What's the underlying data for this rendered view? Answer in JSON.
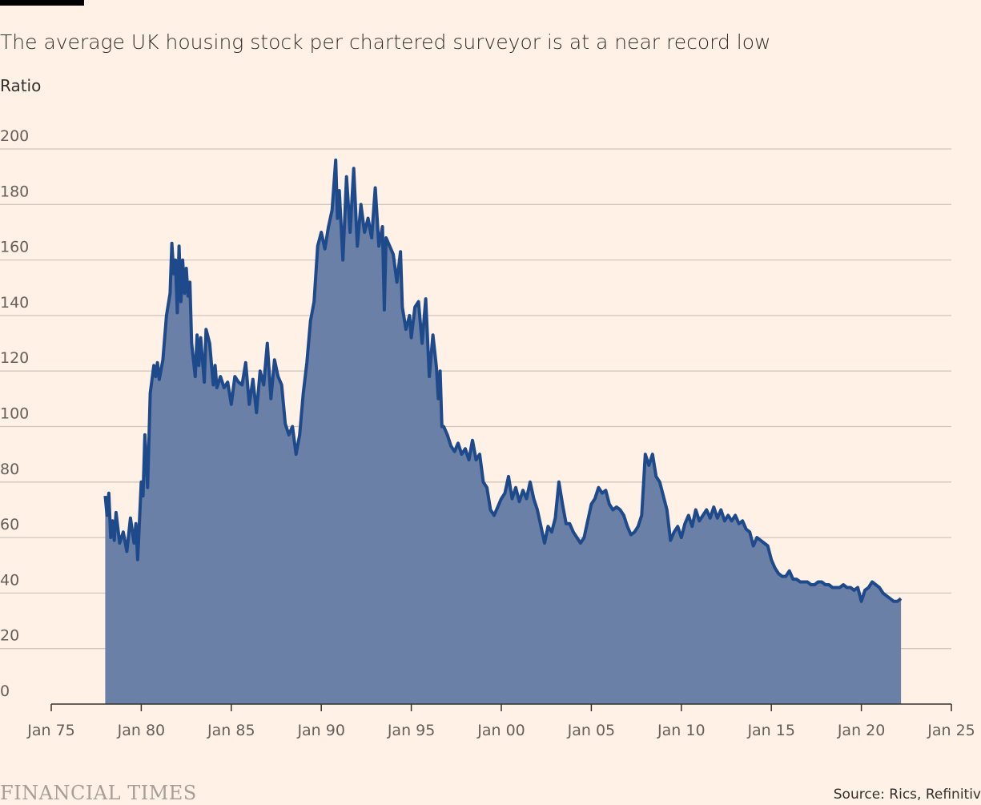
{
  "header": {
    "title": "The average UK housing stock per chartered surveyor is at a near record low",
    "subtitle": "Ratio"
  },
  "footer": {
    "logo": "FINANCIAL TIMES",
    "source": "Source: Rics, Refinitiv"
  },
  "colors": {
    "background": "#fff1e5",
    "area_fill": "#6a80a6",
    "line": "#1e4a8c",
    "grid": "#cfc6bd"
  },
  "chart_data": {
    "type": "area",
    "title": "The average UK housing stock per chartered surveyor is at a near record low",
    "ylabel": "Ratio",
    "xlabel": "",
    "xlim": [
      1975,
      2025
    ],
    "ylim": [
      0,
      200
    ],
    "yticks": [
      0,
      20,
      40,
      60,
      80,
      100,
      120,
      140,
      160,
      180,
      200
    ],
    "xticks": [
      {
        "x": 1975,
        "label": "Jan 75"
      },
      {
        "x": 1980,
        "label": "Jan 80"
      },
      {
        "x": 1985,
        "label": "Jan 85"
      },
      {
        "x": 1990,
        "label": "Jan 90"
      },
      {
        "x": 1995,
        "label": "Jan 95"
      },
      {
        "x": 2000,
        "label": "Jan 00"
      },
      {
        "x": 2005,
        "label": "Jan 05"
      },
      {
        "x": 2010,
        "label": "Jan 10"
      },
      {
        "x": 2015,
        "label": "Jan 15"
      },
      {
        "x": 2020,
        "label": "Jan 20"
      },
      {
        "x": 2025,
        "label": "Jan 25"
      }
    ],
    "grid": true,
    "series": [
      {
        "points": [
          [
            1978.0,
            75
          ],
          [
            1978.1,
            68
          ],
          [
            1978.2,
            76
          ],
          [
            1978.3,
            60
          ],
          [
            1978.4,
            66
          ],
          [
            1978.5,
            59
          ],
          [
            1978.6,
            69
          ],
          [
            1978.8,
            58
          ],
          [
            1979.0,
            62
          ],
          [
            1979.2,
            55
          ],
          [
            1979.4,
            67
          ],
          [
            1979.6,
            58
          ],
          [
            1979.7,
            65
          ],
          [
            1979.8,
            52
          ],
          [
            1980.0,
            80
          ],
          [
            1980.1,
            75
          ],
          [
            1980.2,
            97
          ],
          [
            1980.35,
            78
          ],
          [
            1980.5,
            112
          ],
          [
            1980.7,
            122
          ],
          [
            1980.8,
            118
          ],
          [
            1980.9,
            123
          ],
          [
            1981.0,
            117
          ],
          [
            1981.2,
            124
          ],
          [
            1981.4,
            140
          ],
          [
            1981.6,
            148
          ],
          [
            1981.7,
            166
          ],
          [
            1981.8,
            155
          ],
          [
            1981.9,
            160
          ],
          [
            1982.0,
            141
          ],
          [
            1982.1,
            165
          ],
          [
            1982.2,
            145
          ],
          [
            1982.3,
            160
          ],
          [
            1982.4,
            148
          ],
          [
            1982.5,
            157
          ],
          [
            1982.6,
            147
          ],
          [
            1982.7,
            152
          ],
          [
            1982.8,
            130
          ],
          [
            1983.0,
            118
          ],
          [
            1983.1,
            133
          ],
          [
            1983.2,
            122
          ],
          [
            1983.3,
            132
          ],
          [
            1983.5,
            116
          ],
          [
            1983.6,
            135
          ],
          [
            1983.8,
            130
          ],
          [
            1984.0,
            115
          ],
          [
            1984.1,
            122
          ],
          [
            1984.2,
            114
          ],
          [
            1984.4,
            118
          ],
          [
            1984.6,
            114
          ],
          [
            1984.8,
            116
          ],
          [
            1985.0,
            108
          ],
          [
            1985.2,
            118
          ],
          [
            1985.4,
            116
          ],
          [
            1985.6,
            115
          ],
          [
            1985.8,
            123
          ],
          [
            1986.0,
            108
          ],
          [
            1986.2,
            117
          ],
          [
            1986.4,
            105
          ],
          [
            1986.6,
            120
          ],
          [
            1986.8,
            115
          ],
          [
            1987.0,
            130
          ],
          [
            1987.2,
            110
          ],
          [
            1987.4,
            124
          ],
          [
            1987.6,
            118
          ],
          [
            1987.8,
            115
          ],
          [
            1988.0,
            101
          ],
          [
            1988.2,
            97
          ],
          [
            1988.4,
            100
          ],
          [
            1988.6,
            90
          ],
          [
            1988.8,
            97
          ],
          [
            1989.0,
            112
          ],
          [
            1989.2,
            123
          ],
          [
            1989.4,
            138
          ],
          [
            1989.6,
            145
          ],
          [
            1989.8,
            165
          ],
          [
            1990.0,
            170
          ],
          [
            1990.2,
            164
          ],
          [
            1990.4,
            172
          ],
          [
            1990.6,
            178
          ],
          [
            1990.8,
            196
          ],
          [
            1990.9,
            175
          ],
          [
            1991.0,
            185
          ],
          [
            1991.2,
            160
          ],
          [
            1991.4,
            190
          ],
          [
            1991.6,
            170
          ],
          [
            1991.8,
            193
          ],
          [
            1992.0,
            165
          ],
          [
            1992.2,
            180
          ],
          [
            1992.4,
            170
          ],
          [
            1992.6,
            175
          ],
          [
            1992.8,
            168
          ],
          [
            1993.0,
            186
          ],
          [
            1993.2,
            165
          ],
          [
            1993.4,
            172
          ],
          [
            1993.5,
            142
          ],
          [
            1993.6,
            168
          ],
          [
            1993.8,
            165
          ],
          [
            1994.0,
            162
          ],
          [
            1994.2,
            152
          ],
          [
            1994.4,
            163
          ],
          [
            1994.5,
            143
          ],
          [
            1994.7,
            135
          ],
          [
            1994.9,
            140
          ],
          [
            1995.0,
            132
          ],
          [
            1995.2,
            143
          ],
          [
            1995.4,
            145
          ],
          [
            1995.6,
            130
          ],
          [
            1995.8,
            146
          ],
          [
            1996.0,
            118
          ],
          [
            1996.2,
            133
          ],
          [
            1996.4,
            121
          ],
          [
            1996.5,
            110
          ],
          [
            1996.6,
            120
          ],
          [
            1996.7,
            100
          ],
          [
            1996.8,
            100
          ],
          [
            1997.0,
            97
          ],
          [
            1997.2,
            93
          ],
          [
            1997.4,
            91
          ],
          [
            1997.6,
            94
          ],
          [
            1997.8,
            90
          ],
          [
            1998.0,
            92
          ],
          [
            1998.2,
            88
          ],
          [
            1998.4,
            95
          ],
          [
            1998.6,
            88
          ],
          [
            1998.8,
            90
          ],
          [
            1999.0,
            80
          ],
          [
            1999.2,
            78
          ],
          [
            1999.4,
            70
          ],
          [
            1999.6,
            68
          ],
          [
            1999.8,
            71
          ],
          [
            2000.0,
            74
          ],
          [
            2000.2,
            76
          ],
          [
            2000.4,
            82
          ],
          [
            2000.6,
            74
          ],
          [
            2000.8,
            78
          ],
          [
            2001.0,
            73
          ],
          [
            2001.2,
            77
          ],
          [
            2001.4,
            74
          ],
          [
            2001.6,
            80
          ],
          [
            2001.8,
            74
          ],
          [
            2002.0,
            70
          ],
          [
            2002.2,
            64
          ],
          [
            2002.4,
            58
          ],
          [
            2002.6,
            64
          ],
          [
            2002.8,
            62
          ],
          [
            2003.0,
            67
          ],
          [
            2003.2,
            80
          ],
          [
            2003.4,
            72
          ],
          [
            2003.6,
            65
          ],
          [
            2003.8,
            65
          ],
          [
            2004.0,
            62
          ],
          [
            2004.2,
            60
          ],
          [
            2004.4,
            58
          ],
          [
            2004.6,
            60
          ],
          [
            2004.8,
            66
          ],
          [
            2005.0,
            72
          ],
          [
            2005.2,
            74
          ],
          [
            2005.4,
            78
          ],
          [
            2005.6,
            76
          ],
          [
            2005.8,
            77
          ],
          [
            2006.0,
            72
          ],
          [
            2006.2,
            70
          ],
          [
            2006.4,
            71
          ],
          [
            2006.6,
            70
          ],
          [
            2006.8,
            68
          ],
          [
            2007.0,
            64
          ],
          [
            2007.2,
            61
          ],
          [
            2007.4,
            62
          ],
          [
            2007.6,
            64
          ],
          [
            2007.8,
            68
          ],
          [
            2008.0,
            90
          ],
          [
            2008.2,
            86
          ],
          [
            2008.4,
            90
          ],
          [
            2008.6,
            82
          ],
          [
            2008.8,
            80
          ],
          [
            2009.0,
            75
          ],
          [
            2009.2,
            70
          ],
          [
            2009.4,
            59
          ],
          [
            2009.6,
            62
          ],
          [
            2009.8,
            64
          ],
          [
            2010.0,
            60
          ],
          [
            2010.2,
            65
          ],
          [
            2010.4,
            68
          ],
          [
            2010.6,
            64
          ],
          [
            2010.8,
            70
          ],
          [
            2011.0,
            66
          ],
          [
            2011.2,
            68
          ],
          [
            2011.4,
            70
          ],
          [
            2011.6,
            67
          ],
          [
            2011.8,
            71
          ],
          [
            2012.0,
            67
          ],
          [
            2012.2,
            70
          ],
          [
            2012.4,
            66
          ],
          [
            2012.6,
            68
          ],
          [
            2012.8,
            66
          ],
          [
            2013.0,
            68
          ],
          [
            2013.2,
            65
          ],
          [
            2013.4,
            66
          ],
          [
            2013.6,
            63
          ],
          [
            2013.8,
            62
          ],
          [
            2014.0,
            57
          ],
          [
            2014.2,
            60
          ],
          [
            2014.4,
            59
          ],
          [
            2014.6,
            58
          ],
          [
            2014.8,
            57
          ],
          [
            2015.0,
            52
          ],
          [
            2015.2,
            49
          ],
          [
            2015.4,
            47
          ],
          [
            2015.6,
            46
          ],
          [
            2015.8,
            46
          ],
          [
            2016.0,
            48
          ],
          [
            2016.2,
            45
          ],
          [
            2016.4,
            45
          ],
          [
            2016.6,
            44
          ],
          [
            2016.8,
            44
          ],
          [
            2017.0,
            44
          ],
          [
            2017.2,
            43
          ],
          [
            2017.4,
            43
          ],
          [
            2017.6,
            44
          ],
          [
            2017.8,
            44
          ],
          [
            2018.0,
            43
          ],
          [
            2018.2,
            43
          ],
          [
            2018.4,
            42
          ],
          [
            2018.6,
            42
          ],
          [
            2018.8,
            42
          ],
          [
            2019.0,
            43
          ],
          [
            2019.2,
            42
          ],
          [
            2019.4,
            42
          ],
          [
            2019.6,
            41
          ],
          [
            2019.8,
            42
          ],
          [
            2020.0,
            37
          ],
          [
            2020.2,
            41
          ],
          [
            2020.4,
            42
          ],
          [
            2020.6,
            44
          ],
          [
            2020.8,
            43
          ],
          [
            2021.0,
            42
          ],
          [
            2021.2,
            40
          ],
          [
            2021.4,
            39
          ],
          [
            2021.6,
            38
          ],
          [
            2021.8,
            37
          ],
          [
            2022.0,
            37
          ],
          [
            2022.2,
            38
          ]
        ]
      }
    ]
  }
}
